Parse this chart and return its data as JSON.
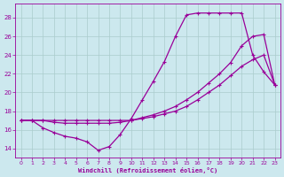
{
  "xlabel": "Windchill (Refroidissement éolien,°C)",
  "background_color": "#cce8ee",
  "grid_color": "#aacccc",
  "line_color": "#990099",
  "xlim": [
    -0.5,
    23.5
  ],
  "ylim": [
    13.0,
    29.5
  ],
  "yticks": [
    14,
    16,
    18,
    20,
    22,
    24,
    26,
    28
  ],
  "xticks": [
    0,
    1,
    2,
    3,
    4,
    5,
    6,
    7,
    8,
    9,
    10,
    11,
    12,
    13,
    14,
    15,
    16,
    17,
    18,
    19,
    20,
    21,
    22,
    23
  ],
  "line1_x": [
    0,
    1,
    2,
    3,
    4,
    5,
    6,
    7,
    8,
    9,
    10,
    11,
    12,
    13,
    14,
    15,
    16,
    17,
    18,
    19,
    20,
    21,
    22,
    23
  ],
  "line1_y": [
    17.0,
    17.0,
    16.2,
    15.7,
    15.3,
    15.1,
    14.7,
    13.8,
    14.2,
    15.5,
    17.2,
    19.2,
    21.2,
    23.3,
    26.0,
    28.3,
    28.5,
    28.5,
    28.5,
    28.5,
    28.5,
    24.0,
    22.2,
    20.8
  ],
  "line2_x": [
    0,
    1,
    2,
    3,
    4,
    5,
    6,
    7,
    8,
    9,
    10,
    11,
    12,
    13,
    14,
    15,
    16,
    17,
    18,
    19,
    20,
    21,
    22,
    23
  ],
  "line2_y": [
    17.0,
    17.0,
    17.0,
    16.8,
    16.7,
    16.7,
    16.7,
    16.7,
    16.7,
    16.8,
    17.0,
    17.3,
    17.6,
    18.0,
    18.5,
    19.2,
    20.0,
    21.0,
    22.0,
    23.2,
    25.0,
    26.0,
    26.2,
    20.8
  ],
  "line3_x": [
    0,
    1,
    2,
    3,
    4,
    5,
    6,
    7,
    8,
    9,
    10,
    11,
    12,
    13,
    14,
    15,
    16,
    17,
    18,
    19,
    20,
    21,
    22,
    23
  ],
  "line3_y": [
    17.0,
    17.0,
    17.0,
    17.0,
    17.0,
    17.0,
    17.0,
    17.0,
    17.0,
    17.0,
    17.0,
    17.2,
    17.4,
    17.7,
    18.0,
    18.5,
    19.2,
    20.0,
    20.8,
    21.8,
    22.8,
    23.5,
    24.0,
    20.8
  ],
  "marker_size": 2.5,
  "line_width": 0.9
}
